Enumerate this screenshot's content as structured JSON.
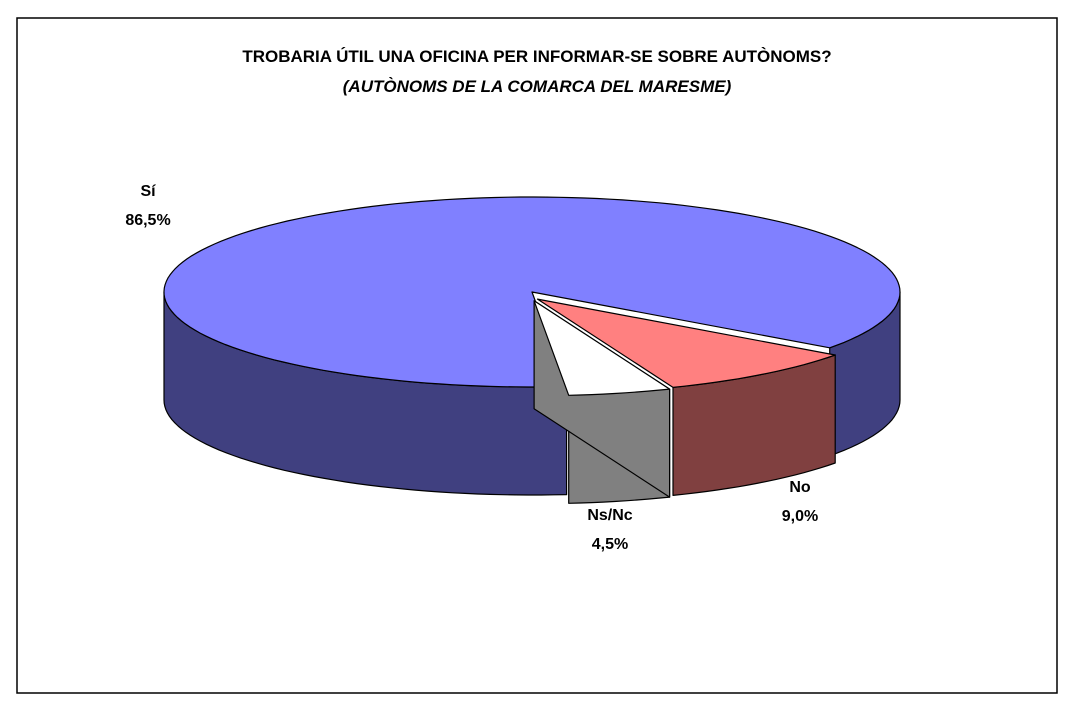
{
  "chart_data": {
    "type": "pie3d",
    "title": "TROBARIA ÚTIL UNA OFICINA PER INFORMAR-SE SOBRE AUTÒNOMS?",
    "subtitle": "(AUTÒNOMS DE LA COMARCA DEL MARESME)",
    "categories": [
      "Sí",
      "No",
      "Ns/Nc"
    ],
    "values": [
      86.5,
      9.0,
      4.5
    ],
    "value_labels": [
      "86,5%",
      "9,0%",
      "4,5%"
    ],
    "colors": [
      "#8080ff",
      "#ff8080",
      "#ffffff"
    ],
    "side_colors": [
      "#404080",
      "#804040",
      "#808080"
    ]
  }
}
